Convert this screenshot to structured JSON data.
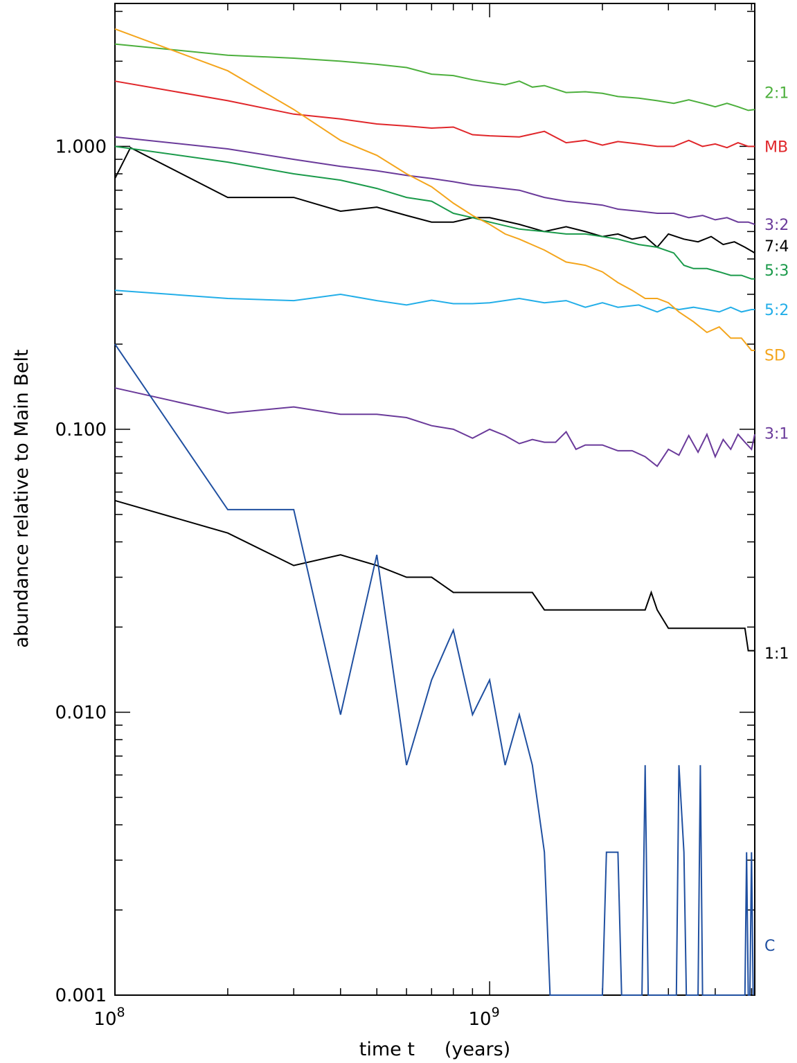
{
  "chart_data": {
    "type": "line",
    "title": "",
    "xlabel": "time t     (years)",
    "ylabel": "abundance relative to Main Belt",
    "x_scale": "log",
    "y_scale": "log",
    "xlim": [
      100000000,
      5100000000
    ],
    "ylim": [
      0.001,
      3.2
    ],
    "grid": false,
    "legend": "labels at right end of each line",
    "x_ticks": [
      {
        "value": 100000000,
        "base": "10",
        "exp": "8"
      },
      {
        "value": 1000000000,
        "base": "10",
        "exp": "9"
      }
    ],
    "y_ticks": [
      {
        "value": 1.0,
        "label": "1.000"
      },
      {
        "value": 0.1,
        "label": "0.100"
      },
      {
        "value": 0.01,
        "label": "0.010"
      },
      {
        "value": 0.001,
        "label": "0.001"
      }
    ],
    "series": [
      {
        "name": "2:1",
        "color": "#4caf3c",
        "label_value": 1.55,
        "x": [
          100000000.0,
          200000000.0,
          300000000.0,
          400000000.0,
          500000000.0,
          600000000.0,
          700000000.0,
          800000000.0,
          900000000.0,
          1000000000.0,
          1100000000.0,
          1200000000.0,
          1300000000.0,
          1400000000.0,
          1600000000.0,
          1800000000.0,
          2000000000.0,
          2200000000.0,
          2500000000.0,
          2800000000.0,
          3100000000.0,
          3400000000.0,
          3700000000.0,
          4000000000.0,
          4300000000.0,
          4600000000.0,
          4900000000.0,
          5100000000.0
        ],
        "y": [
          2.3,
          2.1,
          2.05,
          2.0,
          1.95,
          1.9,
          1.8,
          1.78,
          1.72,
          1.68,
          1.65,
          1.7,
          1.62,
          1.64,
          1.55,
          1.56,
          1.54,
          1.5,
          1.48,
          1.45,
          1.42,
          1.46,
          1.42,
          1.38,
          1.42,
          1.38,
          1.34,
          1.35
        ]
      },
      {
        "name": "MB",
        "color": "#e0262a",
        "label_value": 1.0,
        "x": [
          100000000.0,
          200000000.0,
          300000000.0,
          400000000.0,
          500000000.0,
          600000000.0,
          700000000.0,
          800000000.0,
          900000000.0,
          1000000000.0,
          1200000000.0,
          1400000000.0,
          1600000000.0,
          1800000000.0,
          2000000000.0,
          2200000000.0,
          2500000000.0,
          2800000000.0,
          3100000000.0,
          3400000000.0,
          3700000000.0,
          4000000000.0,
          4300000000.0,
          4600000000.0,
          4900000000.0,
          5100000000.0
        ],
        "y": [
          1.7,
          1.45,
          1.3,
          1.25,
          1.2,
          1.18,
          1.16,
          1.17,
          1.1,
          1.09,
          1.08,
          1.13,
          1.03,
          1.05,
          1.01,
          1.04,
          1.02,
          1.0,
          1.0,
          1.05,
          1.0,
          1.02,
          0.99,
          1.03,
          1.0,
          1.0
        ]
      },
      {
        "name": "3:2",
        "color": "#6a3a9a",
        "label_value": 0.53,
        "x": [
          100000000.0,
          200000000.0,
          300000000.0,
          400000000.0,
          500000000.0,
          600000000.0,
          700000000.0,
          800000000.0,
          900000000.0,
          1000000000.0,
          1200000000.0,
          1400000000.0,
          1600000000.0,
          1800000000.0,
          2000000000.0,
          2200000000.0,
          2500000000.0,
          2800000000.0,
          3100000000.0,
          3400000000.0,
          3700000000.0,
          4000000000.0,
          4300000000.0,
          4600000000.0,
          4900000000.0,
          5100000000.0
        ],
        "y": [
          1.08,
          0.98,
          0.9,
          0.85,
          0.82,
          0.79,
          0.77,
          0.75,
          0.73,
          0.72,
          0.7,
          0.66,
          0.64,
          0.63,
          0.62,
          0.6,
          0.59,
          0.58,
          0.58,
          0.56,
          0.57,
          0.55,
          0.56,
          0.54,
          0.54,
          0.53
        ]
      },
      {
        "name": "7:4",
        "color": "#000000",
        "label_value": 0.445,
        "x": [
          100000000.0,
          110000000.0,
          200000000.0,
          300000000.0,
          400000000.0,
          500000000.0,
          600000000.0,
          700000000.0,
          800000000.0,
          900000000.0,
          1000000000.0,
          1200000000.0,
          1400000000.0,
          1600000000.0,
          1800000000.0,
          2000000000.0,
          2200000000.0,
          2400000000.0,
          2600000000.0,
          2800000000.0,
          3000000000.0,
          3300000000.0,
          3600000000.0,
          3900000000.0,
          4200000000.0,
          4500000000.0,
          4800000000.0,
          5100000000.0
        ],
        "y": [
          0.77,
          0.99,
          0.66,
          0.66,
          0.59,
          0.61,
          0.57,
          0.54,
          0.54,
          0.56,
          0.56,
          0.53,
          0.5,
          0.52,
          0.5,
          0.48,
          0.49,
          0.47,
          0.48,
          0.44,
          0.49,
          0.47,
          0.46,
          0.48,
          0.45,
          0.46,
          0.44,
          0.42
        ]
      },
      {
        "name": "5:3",
        "color": "#1a9a4a",
        "label_value": 0.365,
        "x": [
          100000000.0,
          200000000.0,
          300000000.0,
          400000000.0,
          500000000.0,
          600000000.0,
          700000000.0,
          800000000.0,
          900000000.0,
          1000000000.0,
          1200000000.0,
          1400000000.0,
          1600000000.0,
          1800000000.0,
          2000000000.0,
          2200000000.0,
          2500000000.0,
          2800000000.0,
          3100000000.0,
          3300000000.0,
          3500000000.0,
          3800000000.0,
          4100000000.0,
          4400000000.0,
          4700000000.0,
          5000000000.0,
          5100000000.0
        ],
        "y": [
          1.0,
          0.88,
          0.8,
          0.76,
          0.71,
          0.66,
          0.64,
          0.58,
          0.56,
          0.54,
          0.51,
          0.5,
          0.49,
          0.49,
          0.48,
          0.47,
          0.45,
          0.44,
          0.42,
          0.38,
          0.37,
          0.37,
          0.36,
          0.35,
          0.35,
          0.34,
          0.34
        ]
      },
      {
        "name": "5:2",
        "color": "#22aee8",
        "label_value": 0.265,
        "x": [
          100000000.0,
          200000000.0,
          300000000.0,
          400000000.0,
          500000000.0,
          600000000.0,
          700000000.0,
          800000000.0,
          900000000.0,
          1000000000.0,
          1200000000.0,
          1400000000.0,
          1600000000.0,
          1800000000.0,
          2000000000.0,
          2200000000.0,
          2500000000.0,
          2800000000.0,
          3000000000.0,
          3200000000.0,
          3500000000.0,
          3800000000.0,
          4100000000.0,
          4400000000.0,
          4700000000.0,
          5000000000.0,
          5100000000.0
        ],
        "y": [
          0.31,
          0.29,
          0.285,
          0.3,
          0.285,
          0.275,
          0.286,
          0.278,
          0.278,
          0.28,
          0.29,
          0.28,
          0.285,
          0.27,
          0.28,
          0.27,
          0.275,
          0.26,
          0.27,
          0.265,
          0.27,
          0.265,
          0.26,
          0.27,
          0.26,
          0.265,
          0.265
        ]
      },
      {
        "name": "SD",
        "color": "#f4a51c",
        "label_value": 0.183,
        "x": [
          100000000.0,
          200000000.0,
          300000000.0,
          400000000.0,
          500000000.0,
          600000000.0,
          700000000.0,
          800000000.0,
          900000000.0,
          1000000000.0,
          1100000000.0,
          1200000000.0,
          1400000000.0,
          1600000000.0,
          1800000000.0,
          2000000000.0,
          2200000000.0,
          2400000000.0,
          2600000000.0,
          2800000000.0,
          3000000000.0,
          3200000000.0,
          3500000000.0,
          3800000000.0,
          4100000000.0,
          4400000000.0,
          4700000000.0,
          5000000000.0,
          5100000000.0
        ],
        "y": [
          2.6,
          1.85,
          1.35,
          1.05,
          0.93,
          0.8,
          0.72,
          0.63,
          0.57,
          0.53,
          0.49,
          0.47,
          0.43,
          0.39,
          0.38,
          0.36,
          0.33,
          0.31,
          0.29,
          0.29,
          0.28,
          0.26,
          0.24,
          0.22,
          0.23,
          0.21,
          0.21,
          0.19,
          0.19
        ]
      },
      {
        "name": "3:1",
        "color": "#6a3a9a",
        "label_value": 0.097,
        "x": [
          100000000.0,
          200000000.0,
          300000000.0,
          400000000.0,
          500000000.0,
          600000000.0,
          700000000.0,
          800000000.0,
          900000000.0,
          1000000000.0,
          1100000000.0,
          1200000000.0,
          1300000000.0,
          1400000000.0,
          1500000000.0,
          1600000000.0,
          1700000000.0,
          1800000000.0,
          2000000000.0,
          2200000000.0,
          2400000000.0,
          2600000000.0,
          2800000000.0,
          3000000000.0,
          3200000000.0,
          3400000000.0,
          3600000000.0,
          3800000000.0,
          4000000000.0,
          4200000000.0,
          4400000000.0,
          4600000000.0,
          4800000000.0,
          5000000000.0,
          5100000000.0
        ],
        "y": [
          0.14,
          0.114,
          0.12,
          0.113,
          0.113,
          0.11,
          0.103,
          0.1,
          0.093,
          0.1,
          0.095,
          0.089,
          0.092,
          0.09,
          0.09,
          0.098,
          0.085,
          0.088,
          0.088,
          0.084,
          0.084,
          0.08,
          0.074,
          0.085,
          0.081,
          0.095,
          0.083,
          0.096,
          0.08,
          0.092,
          0.085,
          0.096,
          0.09,
          0.085,
          0.096
        ]
      },
      {
        "name": "1:1",
        "color": "#000000",
        "label_value": 0.0162,
        "x": [
          100000000.0,
          200000000.0,
          300000000.0,
          400000000.0,
          500000000.0,
          600000000.0,
          700000000.0,
          800000000.0,
          900000000.0,
          1000000000.0,
          1200000000.0,
          1300000000.0,
          1400000000.0,
          1600000000.0,
          1800000000.0,
          2000000000.0,
          2300000000.0,
          2600000000.0,
          2700000000.0,
          2800000000.0,
          3000000000.0,
          3500000000.0,
          4000000000.0,
          4500000000.0,
          4800000000.0,
          4900000000.0,
          5100000000.0
        ],
        "y": [
          0.056,
          0.043,
          0.033,
          0.036,
          0.033,
          0.03,
          0.03,
          0.0265,
          0.0265,
          0.0265,
          0.0265,
          0.0265,
          0.023,
          0.023,
          0.023,
          0.023,
          0.023,
          0.023,
          0.0265,
          0.023,
          0.0198,
          0.0198,
          0.0198,
          0.0198,
          0.0198,
          0.0165,
          0.0165
        ]
      },
      {
        "name": "C",
        "color": "#1f4fa0",
        "label_value": 0.0015,
        "x": [
          100000000.0,
          200000000.0,
          300000000.0,
          400000000.0,
          500000000.0,
          600000000.0,
          700000000.0,
          800000000.0,
          900000000.0,
          1000000000.0,
          1100000000.0,
          1200000000.0,
          1300000000.0,
          1400000000.0,
          1450000000.0,
          2000000000.0,
          2050000000.0,
          2200000000.0,
          2250000000.0,
          2550000000.0,
          2600000000.0,
          2650000000.0,
          3150000000.0,
          3200000000.0,
          3300000000.0,
          3350000000.0,
          3600000000.0,
          3650000000.0,
          3700000000.0,
          4800000000.0,
          4850000000.0,
          4900000000.0,
          4950000000.0,
          5000000000.0,
          5050000000.0
        ],
        "y": [
          0.2,
          0.052,
          0.052,
          0.0098,
          0.036,
          0.0065,
          0.013,
          0.0195,
          0.0098,
          0.013,
          0.0065,
          0.0098,
          0.0065,
          0.0032,
          0.001,
          0.001,
          0.0032,
          0.0032,
          0.001,
          0.001,
          0.0065,
          0.001,
          0.001,
          0.0065,
          0.0032,
          0.001,
          0.001,
          0.0065,
          0.001,
          0.001,
          0.0032,
          0.001,
          0.001,
          0.0032,
          0.001
        ]
      }
    ]
  }
}
